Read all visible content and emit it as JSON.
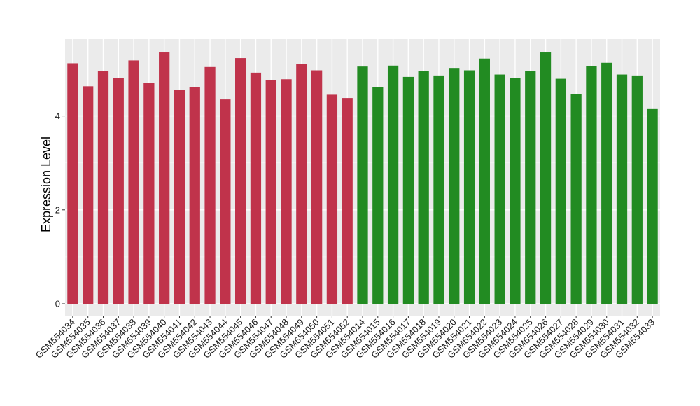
{
  "chart_data": {
    "type": "bar",
    "title": "",
    "xlabel": "",
    "ylabel": "Expression Level",
    "ylim": [
      0,
      5.5
    ],
    "y_ticks": [
      0,
      2,
      4
    ],
    "grid": true,
    "background_color": "#ebebeb",
    "colors": {
      "group_a": "#c0334b",
      "group_b": "#228b22"
    },
    "categories": [
      "GSM554034",
      "GSM554035",
      "GSM554036",
      "GSM554037",
      "GSM554038",
      "GSM554039",
      "GSM554040",
      "GSM554041",
      "GSM554042",
      "GSM554043",
      "GSM554044",
      "GSM554045",
      "GSM554046",
      "GSM554047",
      "GSM554048",
      "GSM554049",
      "GSM554050",
      "GSM554051",
      "GSM554052",
      "GSM554014",
      "GSM554015",
      "GSM554016",
      "GSM554017",
      "GSM554018",
      "GSM554019",
      "GSM554020",
      "GSM554021",
      "GSM554022",
      "GSM554023",
      "GSM554024",
      "GSM554025",
      "GSM554026",
      "GSM554027",
      "GSM554028",
      "GSM554029",
      "GSM554030",
      "GSM554031",
      "GSM554032",
      "GSM554033"
    ],
    "values": [
      5.12,
      4.63,
      4.96,
      4.81,
      5.18,
      4.7,
      5.35,
      4.55,
      4.62,
      5.04,
      4.35,
      5.23,
      4.92,
      4.76,
      4.78,
      5.1,
      4.97,
      4.45,
      4.38,
      5.05,
      4.61,
      5.07,
      4.83,
      4.95,
      4.86,
      5.02,
      4.97,
      5.22,
      4.88,
      4.81,
      4.95,
      5.35,
      4.79,
      4.47,
      5.06,
      5.13,
      4.88,
      4.86,
      4.16
    ],
    "groups": [
      "group_a",
      "group_a",
      "group_a",
      "group_a",
      "group_a",
      "group_a",
      "group_a",
      "group_a",
      "group_a",
      "group_a",
      "group_a",
      "group_a",
      "group_a",
      "group_a",
      "group_a",
      "group_a",
      "group_a",
      "group_a",
      "group_a",
      "group_b",
      "group_b",
      "group_b",
      "group_b",
      "group_b",
      "group_b",
      "group_b",
      "group_b",
      "group_b",
      "group_b",
      "group_b",
      "group_b",
      "group_b",
      "group_b",
      "group_b",
      "group_b",
      "group_b",
      "group_b",
      "group_b",
      "group_b"
    ]
  }
}
